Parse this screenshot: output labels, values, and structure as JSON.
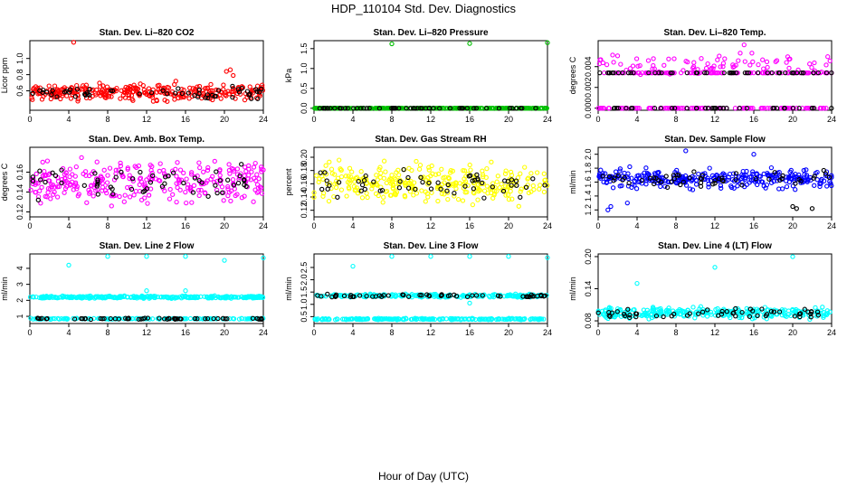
{
  "page_title": "HDP_110104  Std. Dev. Diagnostics",
  "xlabel": "Hour of Day (UTC)",
  "chart_data": [
    {
      "type": "scatter",
      "title": "Stan. Dev. Li–820 CO2",
      "ylabel": "Licor ppm",
      "xlim": [
        0,
        24
      ],
      "ylim": [
        0.36,
        1.22
      ],
      "x_ticks": [
        0,
        4,
        8,
        12,
        16,
        20,
        24
      ],
      "y_ticks": [
        0.6,
        0.8,
        1.0
      ],
      "y_tick_labels": [
        "0.6",
        "0.8",
        "1.0"
      ],
      "series": [
        {
          "name": "main",
          "color": "#ff0000",
          "level": 0.58,
          "spread": 0.07,
          "count": 300,
          "outliers": [
            [
              4.5,
              1.2
            ],
            [
              20.2,
              0.84
            ],
            [
              20.6,
              0.86
            ],
            [
              20.9,
              0.79
            ],
            [
              15.0,
              0.72
            ]
          ]
        },
        {
          "name": "reference",
          "color": "#000000",
          "level": 0.58,
          "spread": 0.05,
          "count": 55,
          "outliers": []
        }
      ]
    },
    {
      "type": "scatter",
      "title": "Stan. Dev. Li–820 Pressure",
      "ylabel": "kPa",
      "xlim": [
        0,
        24
      ],
      "ylim": [
        -0.05,
        1.7
      ],
      "x_ticks": [
        0,
        4,
        8,
        12,
        16,
        20,
        24
      ],
      "y_ticks": [
        0.0,
        0.5,
        1.0,
        1.5
      ],
      "y_tick_labels": [
        "0.0",
        "0.5",
        "1.0",
        "1.5"
      ],
      "series": [
        {
          "name": "main",
          "color": "#00c000",
          "level": 0.0,
          "spread": 0.003,
          "count": 300,
          "outliers": [
            [
              8.0,
              1.62
            ],
            [
              16.0,
              1.63
            ],
            [
              24.0,
              1.65
            ]
          ]
        },
        {
          "name": "reference",
          "color": "#000000",
          "level": 0.0,
          "spread": 0.002,
          "count": 55,
          "outliers": []
        }
      ]
    },
    {
      "type": "scatter",
      "title": "Stan. Dev. Li–820 Temp.",
      "ylabel": "degrees C",
      "xlim": [
        0,
        24
      ],
      "ylim": [
        -0.0002,
        0.0065
      ],
      "x_ticks": [
        0,
        4,
        8,
        12,
        16,
        20,
        24
      ],
      "y_ticks": [
        0.0,
        0.002,
        0.004
      ],
      "y_tick_labels": [
        "0.000",
        "0.002",
        "0.004"
      ],
      "series": [
        {
          "name": "main",
          "color": "#ff00ff",
          "level": 0.0,
          "spread": 0.0,
          "count": 120,
          "outliers": []
        },
        {
          "name": "main-mid",
          "color": "#ff00ff",
          "level": 0.0034,
          "spread": 0.0,
          "count": 120,
          "outliers": []
        },
        {
          "name": "main-high",
          "color": "#ff00ff",
          "level": 0.0042,
          "spread": 0.0006,
          "count": 80,
          "outliers": [
            [
              15.0,
              0.0061
            ],
            [
              14.6,
              0.0053
            ],
            [
              15.8,
              0.0053
            ]
          ]
        },
        {
          "name": "reference",
          "color": "#000000",
          "level": 0.0034,
          "spread": 0.0,
          "count": 50,
          "outliers": []
        },
        {
          "name": "reference-low",
          "color": "#000000",
          "level": 0.0,
          "spread": 0.0,
          "count": 40,
          "outliers": []
        }
      ]
    },
    {
      "type": "scatter",
      "title": "Stan. Dev. Amb. Box Temp.",
      "ylabel": "degrees C",
      "xlim": [
        0,
        24
      ],
      "ylim": [
        0.115,
        0.185
      ],
      "x_ticks": [
        0,
        4,
        8,
        12,
        16,
        20,
        24
      ],
      "y_ticks": [
        0.12,
        0.14,
        0.16
      ],
      "y_tick_labels": [
        "0.12",
        "0.14",
        "0.16"
      ],
      "series": [
        {
          "name": "main",
          "color": "#ff00ff",
          "level": 0.15,
          "spread": 0.015,
          "count": 300,
          "outliers": []
        },
        {
          "name": "reference",
          "color": "#000000",
          "level": 0.15,
          "spread": 0.012,
          "count": 55,
          "outliers": []
        }
      ]
    },
    {
      "type": "scatter",
      "title": "Stan. Dev. Gas Stream RH",
      "ylabel": "percent",
      "xlim": [
        0,
        24
      ],
      "ylim": [
        0.11,
        0.215
      ],
      "x_ticks": [
        0,
        4,
        8,
        12,
        16,
        20,
        24
      ],
      "y_ticks": [
        0.12,
        0.14,
        0.16,
        0.18,
        0.2
      ],
      "y_tick_labels": [
        "0.12",
        "0.14",
        "0.16",
        "0.18",
        "0.20"
      ],
      "series": [
        {
          "name": "main",
          "color": "#ffff00",
          "level": 0.16,
          "spread": 0.02,
          "count": 300,
          "outliers": []
        },
        {
          "name": "reference",
          "color": "#000000",
          "level": 0.16,
          "spread": 0.017,
          "count": 55,
          "outliers": []
        }
      ]
    },
    {
      "type": "scatter",
      "title": "Stan. Dev. Sample Flow",
      "ylabel": "ml/min",
      "xlim": [
        0,
        24
      ],
      "ylim": [
        1.1,
        2.1
      ],
      "x_ticks": [
        0,
        4,
        8,
        12,
        16,
        20,
        24
      ],
      "y_ticks": [
        1.2,
        1.4,
        1.6,
        1.8,
        2.0
      ],
      "y_tick_labels": [
        "1.2",
        "1.4",
        "1.6",
        "1.8",
        "2.0"
      ],
      "series": [
        {
          "name": "main",
          "color": "#0000ff",
          "level": 1.65,
          "spread": 0.1,
          "count": 300,
          "outliers": [
            [
              1.0,
              1.2
            ],
            [
              1.3,
              1.25
            ],
            [
              3.0,
              1.3
            ],
            [
              9.0,
              2.05
            ],
            [
              16.0,
              2.0
            ]
          ]
        },
        {
          "name": "reference",
          "color": "#000000",
          "level": 1.64,
          "spread": 0.09,
          "count": 55,
          "outliers": [
            [
              20.0,
              1.25
            ],
            [
              20.4,
              1.22
            ],
            [
              22.0,
              1.22
            ]
          ]
        }
      ]
    },
    {
      "type": "scatter",
      "title": "Stan. Dev. Line 2 Flow",
      "ylabel": "ml/min",
      "xlim": [
        0,
        24
      ],
      "ylim": [
        0.55,
        4.9
      ],
      "x_ticks": [
        0,
        4,
        8,
        12,
        16,
        20,
        24
      ],
      "y_ticks": [
        1,
        2,
        3,
        4
      ],
      "y_tick_labels": [
        "1",
        "2",
        "3",
        "4"
      ],
      "series": [
        {
          "name": "main-high",
          "color": "#00ffff",
          "level": 2.2,
          "spread": 0.05,
          "count": 300,
          "outliers": [
            [
              4.0,
              4.2
            ],
            [
              8.0,
              4.75
            ],
            [
              12.0,
              4.75
            ],
            [
              16.0,
              4.75
            ],
            [
              20.0,
              4.5
            ],
            [
              24.0,
              4.65
            ],
            [
              12.0,
              2.6
            ],
            [
              16.0,
              2.6
            ]
          ]
        },
        {
          "name": "main-low",
          "color": "#00ffff",
          "level": 0.85,
          "spread": 0.02,
          "count": 150,
          "outliers": []
        },
        {
          "name": "reference",
          "color": "#000000",
          "level": 0.85,
          "spread": 0.03,
          "count": 55,
          "outliers": []
        }
      ]
    },
    {
      "type": "scatter",
      "title": "Stan. Dev. Line 3 Flow",
      "ylabel": "ml/min",
      "xlim": [
        0,
        24
      ],
      "ylim": [
        0.22,
        3.05
      ],
      "x_ticks": [
        0,
        4,
        8,
        12,
        16,
        20,
        24
      ],
      "y_ticks": [
        0.5,
        1.0,
        1.5,
        2.0,
        2.5
      ],
      "y_tick_labels": [
        "0.5",
        "1.0",
        "1.5",
        "2.0",
        "2.5"
      ],
      "series": [
        {
          "name": "main-high",
          "color": "#00ffff",
          "level": 1.35,
          "spread": 0.05,
          "count": 220,
          "outliers": [
            [
              4.0,
              2.55
            ],
            [
              8.0,
              2.95
            ],
            [
              12.0,
              2.95
            ],
            [
              16.0,
              2.95
            ],
            [
              20.0,
              2.95
            ],
            [
              24.0,
              2.9
            ],
            [
              16.0,
              1.05
            ]
          ]
        },
        {
          "name": "main-low",
          "color": "#00ffff",
          "level": 0.4,
          "spread": 0.02,
          "count": 220,
          "outliers": []
        },
        {
          "name": "reference",
          "color": "#000000",
          "level": 1.35,
          "spread": 0.04,
          "count": 55,
          "outliers": []
        }
      ]
    },
    {
      "type": "scatter",
      "title": "Stan. Dev. Line 4 (LT) Flow",
      "ylabel": "ml/min",
      "xlim": [
        0,
        24
      ],
      "ylim": [
        0.075,
        0.205
      ],
      "x_ticks": [
        0,
        4,
        8,
        12,
        16,
        20,
        24
      ],
      "y_ticks": [
        0.08,
        0.14,
        0.2
      ],
      "y_tick_labels": [
        "0.08",
        "0.14",
        "0.20"
      ],
      "series": [
        {
          "name": "main",
          "color": "#00ffff",
          "level": 0.095,
          "spread": 0.007,
          "count": 300,
          "outliers": [
            [
              4.0,
              0.15
            ],
            [
              12.0,
              0.18
            ],
            [
              20.0,
              0.2
            ]
          ]
        },
        {
          "name": "reference",
          "color": "#000000",
          "level": 0.095,
          "spread": 0.006,
          "count": 55,
          "outliers": []
        }
      ]
    }
  ]
}
